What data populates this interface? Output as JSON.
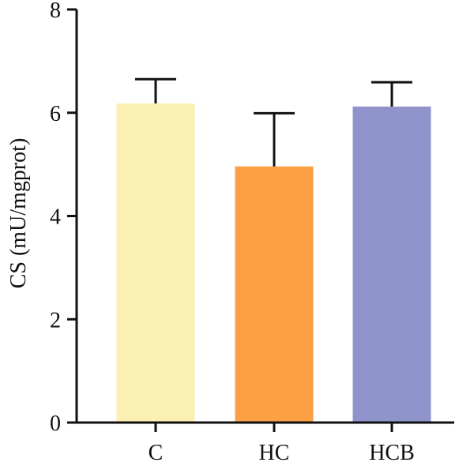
{
  "chart_data": {
    "type": "bar",
    "title": "",
    "xlabel": "",
    "ylabel": "CS (mU/mgprot)",
    "ylim": [
      0,
      8
    ],
    "yticks": [
      0,
      2,
      4,
      6,
      8
    ],
    "grid": false,
    "categories": [
      "C",
      "HC",
      "HCB"
    ],
    "values": [
      6.18,
      4.96,
      6.12
    ],
    "error_upper": [
      0.47,
      1.03,
      0.47
    ],
    "colors": [
      "#FBF0B4",
      "#FC9F45",
      "#8F94CC"
    ],
    "axis_color": "#111111"
  }
}
